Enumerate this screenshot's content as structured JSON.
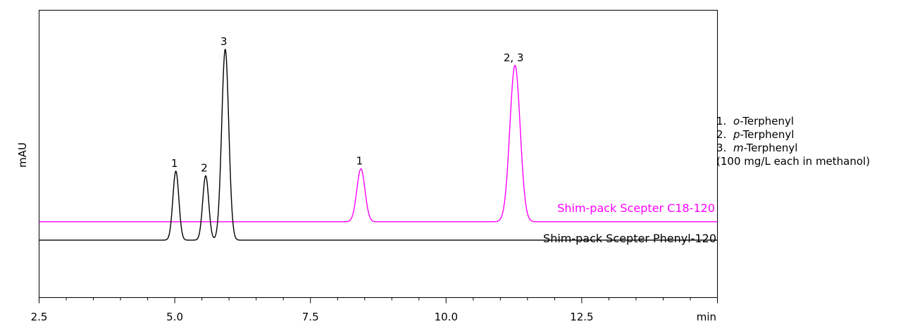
{
  "chart_data": {
    "type": "line",
    "title": "",
    "xlabel": "min",
    "ylabel": "mAU",
    "xlim": [
      2.5,
      15.0
    ],
    "ylim": [
      -25,
      100
    ],
    "x_ticks": [
      "2.5",
      "5.0",
      "7.5",
      "10.0",
      "12.5"
    ],
    "series": [
      {
        "name": "Shim-pack Scepter C18-120",
        "color": "#ff00ff",
        "baseline": 8,
        "peaks": [
          {
            "label": "1",
            "x": 8.43,
            "height": 23,
            "width": 0.075
          },
          {
            "label": "2, 3",
            "x": 11.27,
            "height": 68,
            "width": 0.095
          }
        ]
      },
      {
        "name": "Shim-pack Scepter Phenyl-120",
        "color": "#000000",
        "baseline": 0,
        "peaks": [
          {
            "label": "1",
            "x": 5.02,
            "height": 30,
            "width": 0.055
          },
          {
            "label": "2",
            "x": 5.57,
            "height": 28,
            "width": 0.055
          },
          {
            "label": "3",
            "x": 5.93,
            "height": 83,
            "width": 0.065
          }
        ]
      }
    ],
    "legend_placement": "right",
    "legend": {
      "items": [
        {
          "num": "1.",
          "prefix": "o",
          "rest": "-Terphenyl"
        },
        {
          "num": "2.",
          "prefix": "p",
          "rest": "-Terphenyl"
        },
        {
          "num": "3.",
          "prefix": "m",
          "rest": "-Terphenyl"
        }
      ],
      "note": "(100 mg/L each in methanol)"
    }
  }
}
